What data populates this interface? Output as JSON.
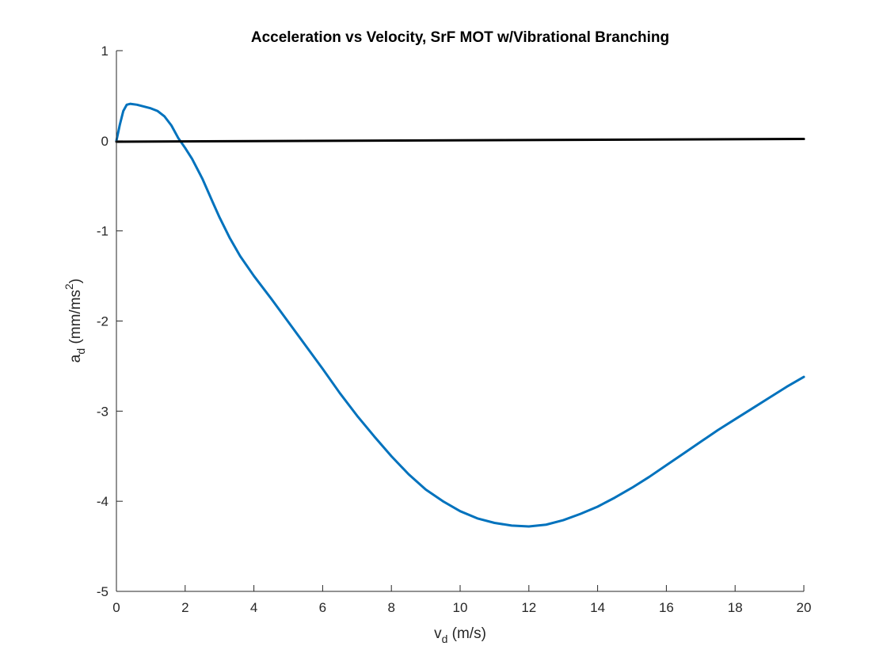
{
  "chart_data": {
    "type": "line",
    "title": "Acceleration vs Velocity, SrF MOT w/Vibrational Branching",
    "xlabel": {
      "main": "v",
      "sub": "d",
      "rest": " (m/s)"
    },
    "ylabel": {
      "main": "a",
      "sub": "d",
      "rest": " (mm/ms",
      "sup": "2",
      "close": ")"
    },
    "xlim": [
      0,
      20
    ],
    "ylim": [
      -5,
      1
    ],
    "xticks": [
      0,
      2,
      4,
      6,
      8,
      10,
      12,
      14,
      16,
      18,
      20
    ],
    "yticks": [
      -5,
      -4,
      -3,
      -2,
      -1,
      0,
      1
    ],
    "grid": false,
    "series": [
      {
        "color": "#0072bd",
        "points": [
          [
            0,
            0.0
          ],
          [
            0.1,
            0.18
          ],
          [
            0.2,
            0.33
          ],
          [
            0.3,
            0.4
          ],
          [
            0.4,
            0.41
          ],
          [
            0.6,
            0.4
          ],
          [
            0.8,
            0.38
          ],
          [
            1.0,
            0.36
          ],
          [
            1.2,
            0.33
          ],
          [
            1.4,
            0.27
          ],
          [
            1.6,
            0.17
          ],
          [
            1.8,
            0.03
          ],
          [
            2.0,
            -0.08
          ],
          [
            2.2,
            -0.2
          ],
          [
            2.5,
            -0.42
          ],
          [
            2.8,
            -0.68
          ],
          [
            3.0,
            -0.85
          ],
          [
            3.3,
            -1.08
          ],
          [
            3.6,
            -1.28
          ],
          [
            4.0,
            -1.5
          ],
          [
            4.5,
            -1.75
          ],
          [
            5.0,
            -2.01
          ],
          [
            5.5,
            -2.27
          ],
          [
            6.0,
            -2.53
          ],
          [
            6.5,
            -2.8
          ],
          [
            7.0,
            -3.05
          ],
          [
            7.5,
            -3.28
          ],
          [
            8.0,
            -3.5
          ],
          [
            8.5,
            -3.7
          ],
          [
            9.0,
            -3.87
          ],
          [
            9.5,
            -4.0
          ],
          [
            10.0,
            -4.11
          ],
          [
            10.5,
            -4.19
          ],
          [
            11.0,
            -4.24
          ],
          [
            11.5,
            -4.27
          ],
          [
            12.0,
            -4.28
          ],
          [
            12.5,
            -4.26
          ],
          [
            13.0,
            -4.21
          ],
          [
            13.5,
            -4.14
          ],
          [
            14.0,
            -4.06
          ],
          [
            14.5,
            -3.96
          ],
          [
            15.0,
            -3.85
          ],
          [
            15.5,
            -3.73
          ],
          [
            16.0,
            -3.6
          ],
          [
            16.5,
            -3.47
          ],
          [
            17.0,
            -3.34
          ],
          [
            17.5,
            -3.21
          ],
          [
            18.0,
            -3.09
          ],
          [
            18.5,
            -2.97
          ],
          [
            19.0,
            -2.85
          ],
          [
            19.5,
            -2.73
          ],
          [
            20.0,
            -2.62
          ]
        ]
      },
      {
        "color": "#000000",
        "points": [
          [
            0,
            -0.01
          ],
          [
            20,
            0.02
          ]
        ]
      }
    ]
  }
}
